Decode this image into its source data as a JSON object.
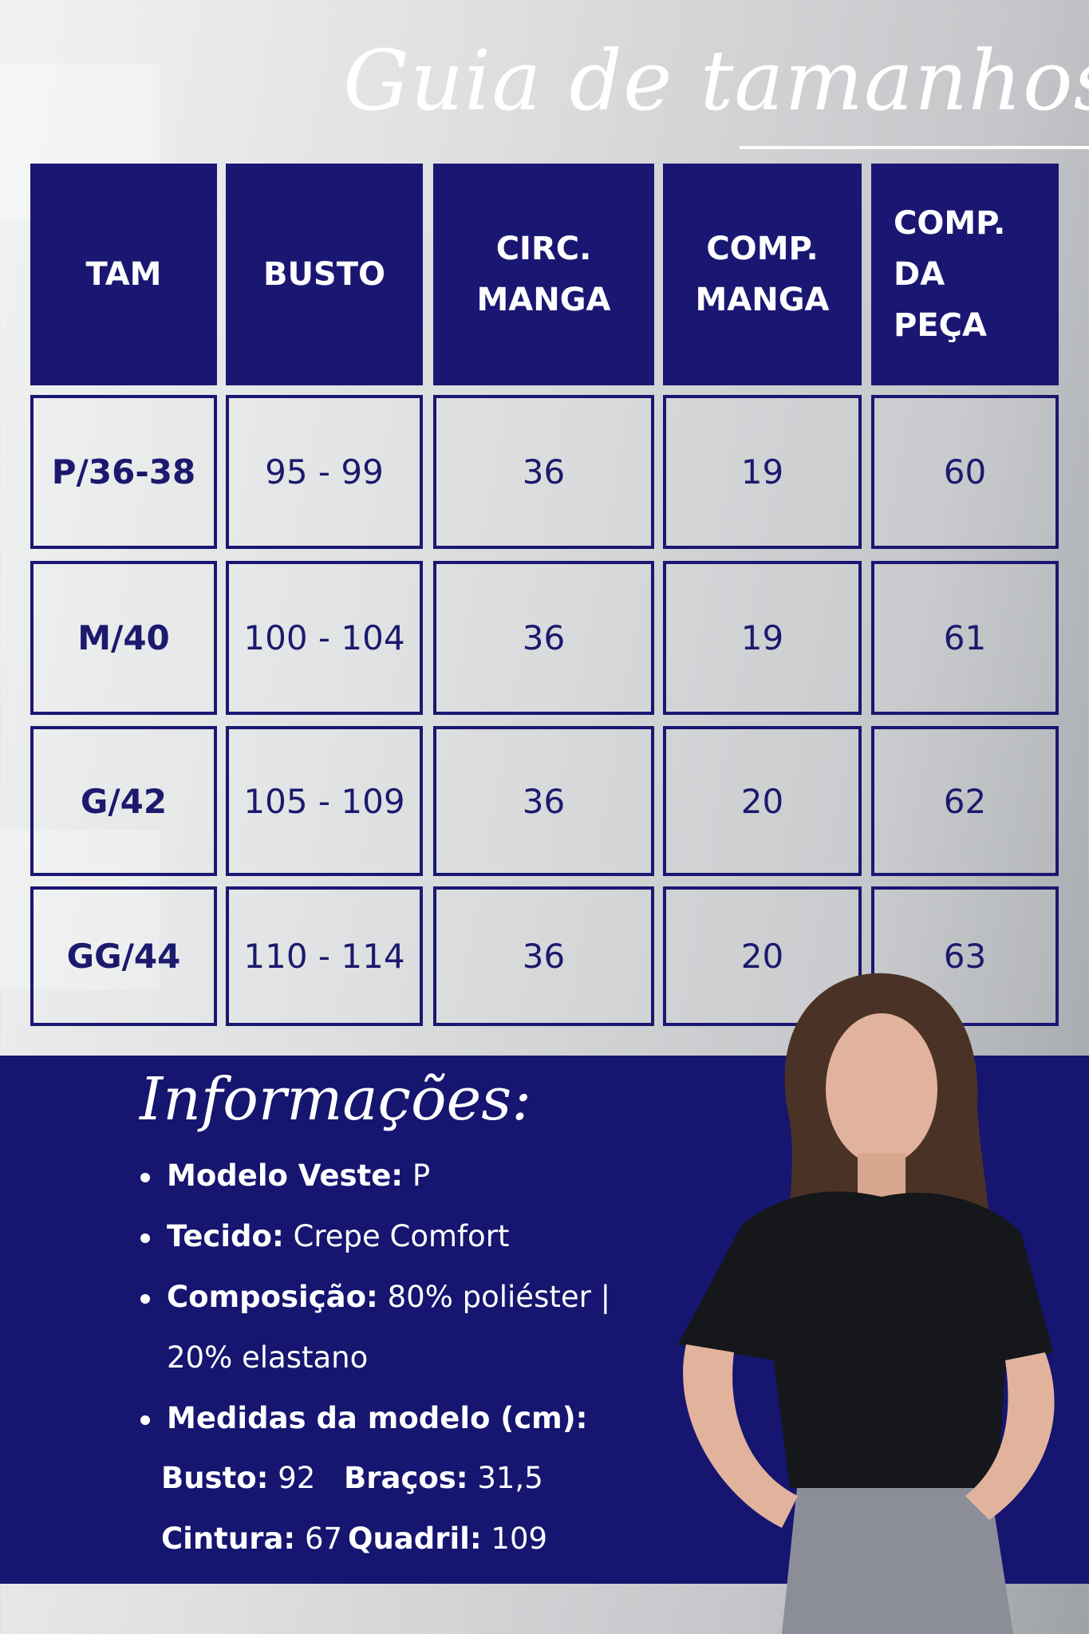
{
  "title": "Guia de tamanhos",
  "table": {
    "headers": [
      [
        "TAM"
      ],
      [
        "BUSTO"
      ],
      [
        "CIRC.",
        "MANGA"
      ],
      [
        "COMP.",
        "MANGA"
      ],
      [
        "COMP.",
        "DA",
        "PEÇA"
      ]
    ],
    "rows": [
      [
        "P/36-38",
        "95 - 99",
        "36",
        "19",
        "60"
      ],
      [
        "M/40",
        "100 - 104",
        "36",
        "19",
        "61"
      ],
      [
        "G/42",
        "105 - 109",
        "36",
        "20",
        "62"
      ],
      [
        "GG/44",
        "110 - 114",
        "36",
        "20",
        "63"
      ]
    ]
  },
  "info": {
    "title": "Informações:",
    "modelo_label": "Modelo Veste:",
    "modelo_value": " P",
    "tecido_label": "Tecido:",
    "tecido_value": " Crepe Comfort",
    "composicao_label": "Composição:",
    "composicao_value": " 80% poliéster |",
    "composicao_value2": "20% elastano",
    "medidas_label": "Medidas da modelo (cm):",
    "busto_label": "Busto:",
    "busto_value": " 92",
    "bracos_label": "Braços:",
    "bracos_value": " 31,5",
    "cintura_label": "Cintura:",
    "cintura_value": " 67",
    "quadril_label": "Quadril:",
    "quadril_value": " 109"
  },
  "colors": {
    "navy": "#1a1773",
    "background": "#d6d7d9"
  }
}
